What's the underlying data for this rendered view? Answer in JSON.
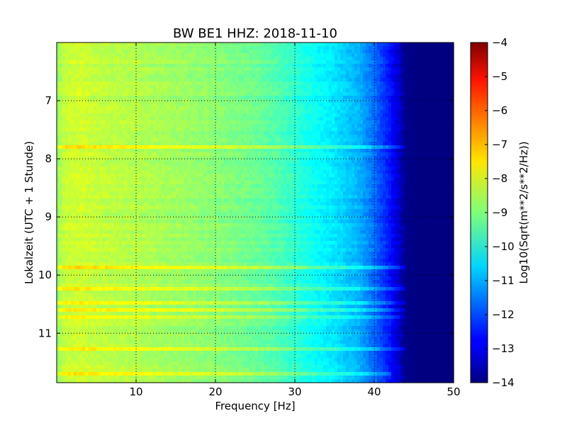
{
  "chart_data": {
    "type": "heatmap",
    "title": "BW BE1 HHZ: 2018-11-10",
    "xlabel": "Frequency [Hz]",
    "ylabel": "Lokalzeit (UTC + 1 Stunde)",
    "xlim": [
      0,
      50
    ],
    "ylim": [
      6.0,
      11.85
    ],
    "y_inverted": true,
    "x_ticks": [
      "10",
      "20",
      "30",
      "40",
      "50"
    ],
    "y_ticks": [
      "7",
      "8",
      "9",
      "10",
      "11"
    ],
    "grid": true,
    "colormap": "jet",
    "colorbar": {
      "label": "Log10(Sqrt(m**2/s**2/Hz))",
      "range": [
        -14,
        -4
      ],
      "ticks": [
        "-4",
        "-5",
        "-6",
        "-7",
        "-8",
        "-9",
        "-10",
        "-11",
        "-12",
        "-13",
        "-14"
      ]
    },
    "frequency_profile": {
      "frequency_hz": [
        0,
        1,
        3,
        5,
        10,
        15,
        20,
        25,
        28,
        30,
        32,
        35,
        38,
        40,
        42,
        43,
        44,
        46,
        50
      ],
      "level": [
        -8.8,
        -8.3,
        -8.2,
        -8.35,
        -8.5,
        -8.7,
        -8.9,
        -9.2,
        -9.5,
        -9.8,
        -10.1,
        -10.5,
        -11.0,
        -11.7,
        -12.6,
        -13.2,
        -13.9,
        -14.0,
        -14.0
      ]
    },
    "horizontal_bands": [
      {
        "time": 7.78,
        "level_offset": 0.8,
        "until_hz": 45
      },
      {
        "time": 9.85,
        "level_offset": 0.8,
        "until_hz": 45
      },
      {
        "time": 10.22,
        "level_offset": 0.7,
        "until_hz": 44
      },
      {
        "time": 10.5,
        "level_offset": 0.6,
        "until_hz": 45
      },
      {
        "time": 10.62,
        "level_offset": 0.7,
        "until_hz": 45
      },
      {
        "time": 10.72,
        "level_offset": 0.5,
        "until_hz": 44
      },
      {
        "time": 11.28,
        "level_offset": 0.8,
        "until_hz": 45
      },
      {
        "time": 11.68,
        "level_offset": 0.6,
        "until_hz": 42
      }
    ]
  }
}
